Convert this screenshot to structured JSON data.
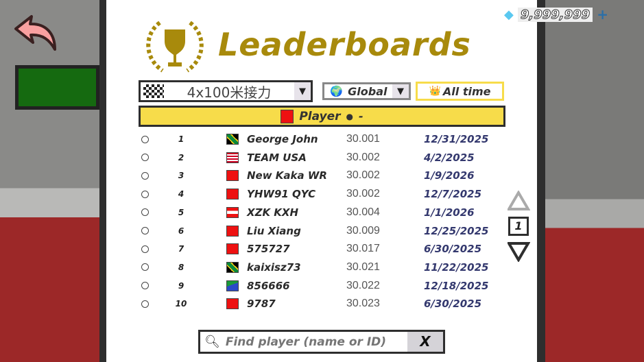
{
  "currency": {
    "amount": "9,999,999",
    "add_label": "+",
    "icon": "diamond-icon"
  },
  "header": {
    "title": "Leaderboards",
    "icon": "trophy-laurel-icon"
  },
  "filters": {
    "event": "4x100米接力",
    "region": "Global",
    "period": "All time"
  },
  "player": {
    "name": "Player",
    "separator": "●",
    "time": "-",
    "country": "CN"
  },
  "rows": [
    {
      "rank": "1",
      "country": "JM",
      "name": "George John",
      "time": "30.001",
      "date": "12/31/2025"
    },
    {
      "rank": "2",
      "country": "US",
      "name": "TEAM USA",
      "time": "30.002",
      "date": "4/2/2025"
    },
    {
      "rank": "3",
      "country": "CN",
      "name": "New Kaka WR",
      "time": "30.002",
      "date": "1/9/2026"
    },
    {
      "rank": "4",
      "country": "CN",
      "name": "YHW91 QYC",
      "time": "30.002",
      "date": "12/7/2025"
    },
    {
      "rank": "5",
      "country": "AT",
      "name": "XZK KXH",
      "time": "30.004",
      "date": "1/1/2026"
    },
    {
      "rank": "6",
      "country": "CN",
      "name": "Liu Xiang",
      "time": "30.009",
      "date": "12/25/2025"
    },
    {
      "rank": "7",
      "country": "CN",
      "name": "575727",
      "time": "30.017",
      "date": "6/30/2025"
    },
    {
      "rank": "8",
      "country": "JM",
      "name": "kaixisz73",
      "time": "30.021",
      "date": "11/22/2025"
    },
    {
      "rank": "9",
      "country": "ER",
      "name": "856666",
      "time": "30.022",
      "date": "12/18/2025"
    },
    {
      "rank": "10",
      "country": "CN",
      "name": "9787",
      "time": "30.023",
      "date": "6/30/2025"
    }
  ],
  "pagination": {
    "page": "1"
  },
  "search": {
    "placeholder": "Find player (name or ID)",
    "clear_label": "X"
  }
}
